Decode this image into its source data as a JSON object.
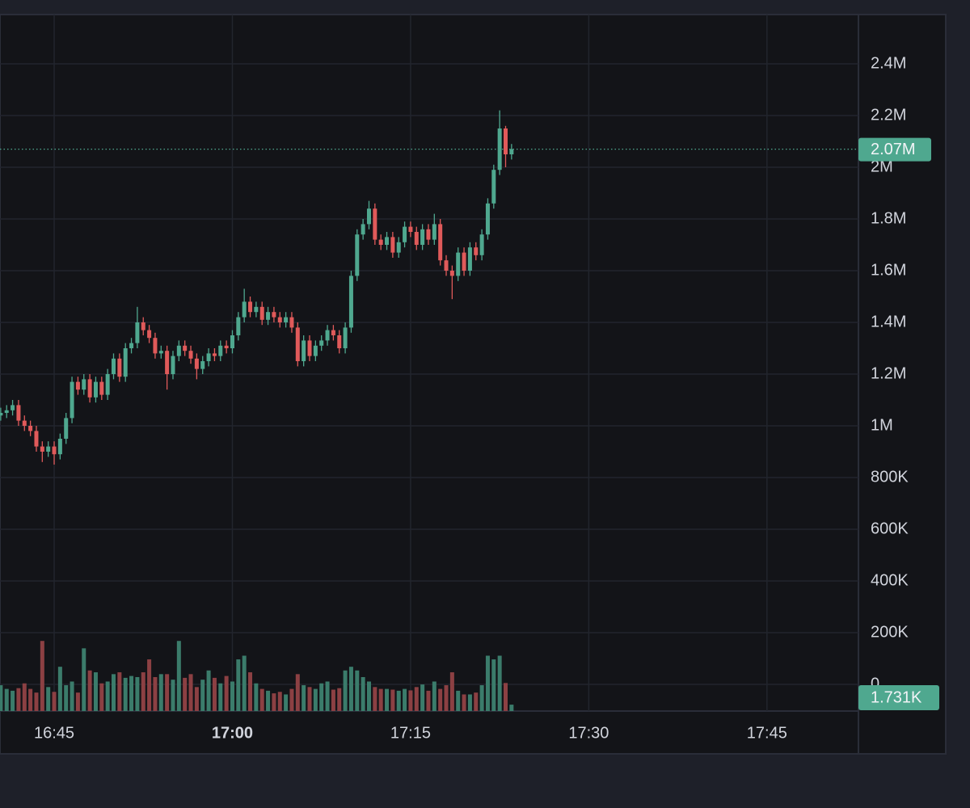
{
  "chart_data": {
    "type": "candlestick",
    "x": [
      1000.5,
      1001,
      1001.5,
      1002,
      1002.5,
      1003,
      1003.5,
      1004,
      1004.5,
      1005,
      1005.5,
      1006,
      1006.5,
      1007,
      1007.5,
      1008,
      1008.5,
      1009,
      1009.5,
      1010,
      1010.5,
      1011,
      1011.5,
      1012,
      1012.5,
      1013,
      1013.5,
      1014,
      1014.5,
      1015,
      1015.5,
      1016,
      1016.5,
      1017,
      1017.5,
      1018,
      1018.5,
      1019,
      1019.5,
      1020,
      1020.5,
      1021,
      1021.5,
      1022,
      1022.5,
      1023,
      1023.5,
      1024,
      1024.5,
      1025,
      1025.5,
      1026,
      1026.5,
      1027,
      1027.5,
      1028,
      1028.5,
      1029,
      1029.5,
      1030,
      1030.5,
      1031,
      1031.5,
      1032,
      1032.5,
      1033,
      1033.5,
      1034,
      1034.5,
      1035,
      1035.5,
      1036,
      1036.5,
      1037,
      1037.5,
      1038,
      1038.5,
      1039,
      1039.5,
      1040,
      1040.5,
      1041,
      1041.5,
      1042,
      1042.5,
      1043,
      1043.5
    ],
    "open": [
      1040000,
      1050000,
      1060000,
      1080000,
      1020000,
      1000000,
      980000,
      920000,
      900000,
      920000,
      890000,
      950000,
      1030000,
      1170000,
      1140000,
      1180000,
      1110000,
      1170000,
      1120000,
      1200000,
      1260000,
      1190000,
      1300000,
      1320000,
      1400000,
      1370000,
      1340000,
      1280000,
      1290000,
      1200000,
      1270000,
      1310000,
      1290000,
      1260000,
      1220000,
      1250000,
      1280000,
      1270000,
      1310000,
      1300000,
      1350000,
      1420000,
      1480000,
      1440000,
      1460000,
      1410000,
      1440000,
      1420000,
      1400000,
      1420000,
      1380000,
      1250000,
      1330000,
      1270000,
      1310000,
      1330000,
      1370000,
      1350000,
      1300000,
      1380000,
      1580000,
      1740000,
      1780000,
      1840000,
      1720000,
      1700000,
      1730000,
      1670000,
      1710000,
      1770000,
      1750000,
      1700000,
      1760000,
      1720000,
      1780000,
      1640000,
      1600000,
      1580000,
      1670000,
      1600000,
      1690000,
      1660000,
      1740000,
      1860000,
      1990000,
      2150000,
      2050000
    ],
    "high": [
      1070000,
      1080000,
      1100000,
      1100000,
      1040000,
      1020000,
      1000000,
      940000,
      940000,
      940000,
      970000,
      1050000,
      1190000,
      1190000,
      1200000,
      1200000,
      1190000,
      1190000,
      1220000,
      1280000,
      1280000,
      1320000,
      1340000,
      1460000,
      1420000,
      1390000,
      1360000,
      1310000,
      1310000,
      1290000,
      1330000,
      1330000,
      1310000,
      1280000,
      1270000,
      1300000,
      1300000,
      1330000,
      1330000,
      1370000,
      1440000,
      1530000,
      1500000,
      1480000,
      1480000,
      1460000,
      1460000,
      1440000,
      1440000,
      1440000,
      1400000,
      1350000,
      1350000,
      1330000,
      1350000,
      1390000,
      1390000,
      1370000,
      1400000,
      1600000,
      1760000,
      1800000,
      1870000,
      1860000,
      1740000,
      1750000,
      1750000,
      1730000,
      1790000,
      1790000,
      1770000,
      1780000,
      1780000,
      1820000,
      1800000,
      1660000,
      1620000,
      1690000,
      1690000,
      1710000,
      1710000,
      1760000,
      1880000,
      2010000,
      2220000,
      2160000,
      2090000
    ],
    "low": [
      1020000,
      1030000,
      1040000,
      1000000,
      980000,
      960000,
      900000,
      860000,
      880000,
      850000,
      870000,
      930000,
      1010000,
      1120000,
      1120000,
      1090000,
      1090000,
      1100000,
      1100000,
      1180000,
      1170000,
      1170000,
      1280000,
      1300000,
      1350000,
      1320000,
      1260000,
      1260000,
      1140000,
      1180000,
      1250000,
      1270000,
      1240000,
      1180000,
      1200000,
      1230000,
      1250000,
      1250000,
      1280000,
      1280000,
      1330000,
      1400000,
      1420000,
      1420000,
      1390000,
      1390000,
      1400000,
      1380000,
      1380000,
      1360000,
      1230000,
      1230000,
      1250000,
      1250000,
      1290000,
      1310000,
      1330000,
      1280000,
      1280000,
      1360000,
      1560000,
      1720000,
      1760000,
      1700000,
      1680000,
      1680000,
      1650000,
      1650000,
      1690000,
      1730000,
      1680000,
      1680000,
      1700000,
      1700000,
      1620000,
      1580000,
      1490000,
      1560000,
      1580000,
      1580000,
      1640000,
      1640000,
      1720000,
      1840000,
      1970000,
      2000000,
      2030000
    ],
    "close": [
      1050000,
      1060000,
      1080000,
      1020000,
      1000000,
      980000,
      920000,
      900000,
      920000,
      890000,
      950000,
      1030000,
      1170000,
      1140000,
      1180000,
      1110000,
      1170000,
      1120000,
      1200000,
      1260000,
      1190000,
      1300000,
      1320000,
      1400000,
      1370000,
      1340000,
      1280000,
      1290000,
      1200000,
      1270000,
      1310000,
      1290000,
      1260000,
      1220000,
      1250000,
      1280000,
      1270000,
      1310000,
      1300000,
      1350000,
      1420000,
      1480000,
      1440000,
      1460000,
      1410000,
      1440000,
      1420000,
      1400000,
      1420000,
      1380000,
      1250000,
      1330000,
      1270000,
      1310000,
      1330000,
      1370000,
      1350000,
      1300000,
      1380000,
      1580000,
      1740000,
      1780000,
      1840000,
      1720000,
      1700000,
      1730000,
      1670000,
      1710000,
      1770000,
      1750000,
      1700000,
      1760000,
      1720000,
      1780000,
      1640000,
      1600000,
      1580000,
      1670000,
      1600000,
      1690000,
      1660000,
      1740000,
      1860000,
      1990000,
      2150000,
      2050000,
      2070000
    ],
    "volume": [
      7000,
      6000,
      5500,
      6200,
      7500,
      6000,
      5000,
      19000,
      6500,
      5200,
      12000,
      7000,
      8000,
      5000,
      17000,
      11000,
      10500,
      7500,
      8000,
      10000,
      10500,
      9000,
      9500,
      9200,
      10500,
      14000,
      9200,
      10000,
      10000,
      8500,
      19000,
      9000,
      10000,
      6500,
      8500,
      11000,
      9000,
      7500,
      9500,
      8000,
      14000,
      15000,
      10500,
      7500,
      6000,
      5500,
      4800,
      5200,
      4500,
      6000,
      10000,
      7000,
      6500,
      6000,
      7500,
      8000,
      5800,
      6200,
      11000,
      12000,
      11000,
      9200,
      8000,
      6500,
      6000,
      6000,
      5800,
      5500,
      6000,
      5600,
      6500,
      7200,
      5500,
      8000,
      6000,
      7000,
      10500,
      5500,
      4500,
      4500,
      5000,
      7000,
      15000,
      14000,
      15000,
      7600,
      1731
    ],
    "up_color": "#4fa88f",
    "down_color": "#e05a5a",
    "volume_up_color": "#3b7c6b",
    "volume_down_color": "#8c4043",
    "xlim": [
      1000.44,
      1072.7
    ],
    "xticks": [
      {
        "value": 1005,
        "label": "16:45"
      },
      {
        "value": 1020,
        "label": "17:00",
        "bold": true
      },
      {
        "value": 1035,
        "label": "17:15"
      },
      {
        "value": 1050,
        "label": "17:30"
      },
      {
        "value": 1065,
        "label": "17:45"
      }
    ],
    "ylim": [
      -103125,
      2590625
    ],
    "yticks": [
      0,
      {
        "value": 200000,
        "label": "200K"
      },
      {
        "value": 400000,
        "label": "400K"
      },
      {
        "value": 600000,
        "label": "600K"
      },
      {
        "value": 800000,
        "label": "800K"
      },
      {
        "value": 1000000,
        "label": "1M"
      },
      {
        "value": 1200000,
        "label": "1.2M"
      },
      {
        "value": 1400000,
        "label": "1.4M"
      },
      {
        "value": 1600000,
        "label": "1.6M"
      },
      {
        "value": 1800000,
        "label": "1.8M"
      },
      {
        "value": 2000000,
        "label": "2M"
      },
      {
        "value": 2200000,
        "label": "2.2M"
      },
      {
        "value": 2400000,
        "label": "2.4M"
      }
    ],
    "volume_lim": [
      0,
      30000
    ],
    "grid": true,
    "price_line": {
      "value": 2070000,
      "label": "2.07M"
    },
    "volume_line": {
      "value": 1731,
      "label": "1.731K"
    }
  }
}
